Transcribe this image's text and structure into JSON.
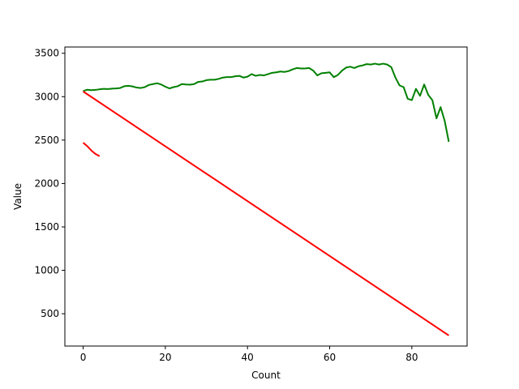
{
  "chart_data": {
    "type": "line",
    "xlabel": "Count",
    "ylabel": "Value",
    "xlim": [
      -4.45,
      93.45
    ],
    "ylim": [
      128,
      3572
    ],
    "xticks": [
      0,
      20,
      40,
      60,
      80
    ],
    "yticks": [
      500,
      1000,
      1500,
      2000,
      2500,
      3000,
      3500
    ],
    "grid": false,
    "series": [
      {
        "color": "#008000",
        "x": [
          0,
          1,
          2,
          3,
          4,
          5,
          6,
          7,
          8,
          9,
          10,
          11,
          12,
          13,
          14,
          15,
          16,
          17,
          18,
          19,
          20,
          21,
          22,
          23,
          24,
          25,
          26,
          27,
          28,
          29,
          30,
          31,
          32,
          33,
          34,
          35,
          36,
          37,
          38,
          39,
          40,
          41,
          42,
          43,
          44,
          45,
          46,
          47,
          48,
          49,
          50,
          51,
          52,
          53,
          54,
          55,
          56,
          57,
          58,
          59,
          60,
          61,
          62,
          63,
          64,
          65,
          66,
          67,
          68,
          69,
          70,
          71,
          72,
          73,
          74,
          75,
          76,
          77,
          78,
          79,
          80,
          81,
          82,
          83,
          84,
          85,
          86,
          87,
          88,
          89
        ],
        "y": [
          3065,
          3080,
          3075,
          3078,
          3085,
          3090,
          3088,
          3092,
          3095,
          3100,
          3120,
          3125,
          3118,
          3105,
          3100,
          3110,
          3135,
          3145,
          3155,
          3140,
          3115,
          3095,
          3110,
          3120,
          3145,
          3140,
          3138,
          3145,
          3170,
          3175,
          3190,
          3195,
          3195,
          3205,
          3220,
          3225,
          3225,
          3235,
          3240,
          3220,
          3230,
          3260,
          3240,
          3250,
          3245,
          3260,
          3275,
          3280,
          3290,
          3285,
          3295,
          3315,
          3330,
          3325,
          3325,
          3330,
          3300,
          3245,
          3270,
          3275,
          3280,
          3225,
          3250,
          3300,
          3335,
          3345,
          3330,
          3350,
          3360,
          3375,
          3370,
          3380,
          3370,
          3380,
          3370,
          3340,
          3220,
          3130,
          3110,
          2975,
          2960,
          3090,
          3010,
          3140,
          3020,
          2960,
          2750,
          2880,
          2720,
          2480
        ]
      },
      {
        "color": "#ff0000",
        "x": [
          0,
          89
        ],
        "y": [
          3060,
          250
        ]
      },
      {
        "color": "#ff0000",
        "x": [
          0,
          1,
          2,
          3,
          4
        ],
        "y": [
          2470,
          2430,
          2380,
          2340,
          2315
        ]
      }
    ]
  }
}
